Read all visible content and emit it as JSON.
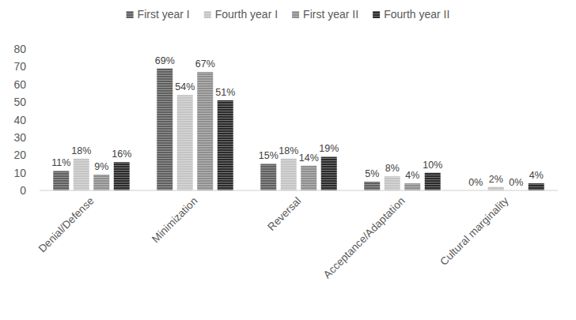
{
  "chart_data": {
    "type": "bar",
    "categories": [
      "Denial/Defense",
      "Minimization",
      "Reversal",
      "Acceptance/Adaptation",
      "Cultural marginality"
    ],
    "series": [
      {
        "name": "First year I",
        "color": "#5f5f5f",
        "values": [
          11,
          69,
          15,
          5,
          0
        ],
        "value_labels": [
          "11%",
          "69%",
          "15%",
          "5%",
          "0%"
        ]
      },
      {
        "name": "Fourth year I",
        "color": "#c4c4c4",
        "values": [
          18,
          54,
          18,
          8,
          2
        ],
        "value_labels": [
          "18%",
          "54%",
          "18%",
          "8%",
          "2%"
        ]
      },
      {
        "name": "First year II",
        "color": "#8f8f8f",
        "values": [
          9,
          67,
          14,
          4,
          0
        ],
        "value_labels": [
          "9%",
          "67%",
          "14%",
          "4%",
          "0%"
        ]
      },
      {
        "name": "Fourth year II",
        "color": "#2b2b2b",
        "values": [
          16,
          51,
          19,
          10,
          4
        ],
        "value_labels": [
          "16%",
          "51%",
          "19%",
          "10%",
          "4%"
        ]
      }
    ],
    "ylim": [
      0,
      80
    ],
    "yticks": [
      0,
      10,
      20,
      30,
      40,
      50,
      60,
      70,
      80
    ],
    "grid": false,
    "legend": "top",
    "data_labels": true
  }
}
